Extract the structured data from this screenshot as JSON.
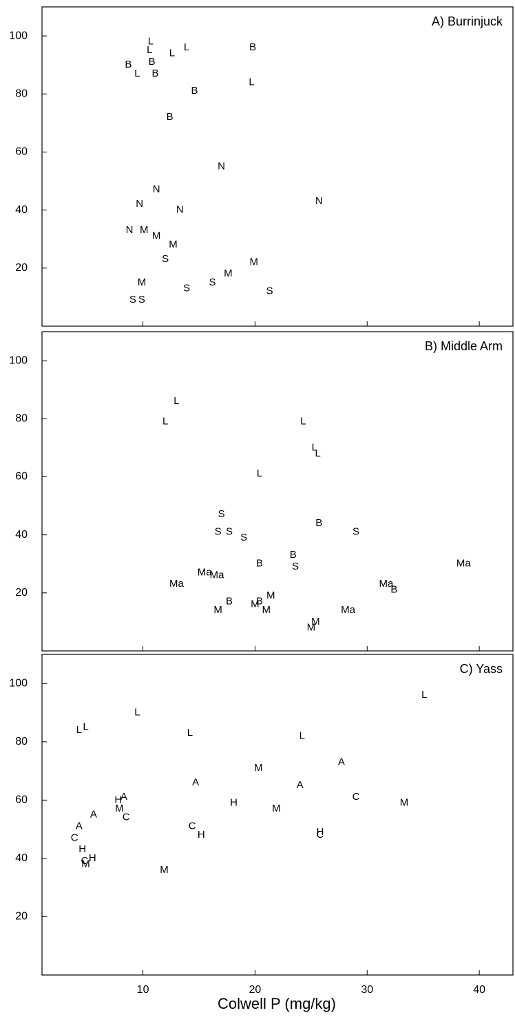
{
  "chart_data": {
    "type": "scatter",
    "xlabel": "Colwell P (mg/kg)",
    "xlim": [
      1,
      43
    ],
    "x_ticks": [
      "10",
      "20",
      "30",
      "40"
    ],
    "x_tick_values": [
      10,
      20,
      30,
      40
    ],
    "ylabel": "",
    "grid": false,
    "legend": "none",
    "colors": {
      "ink": "#000000",
      "background": "#ffffff"
    },
    "panels": [
      {
        "title": "A) Burrinjuck",
        "ylim": [
          0,
          110
        ],
        "y_ticks": [
          "20",
          "40",
          "60",
          "80",
          "100"
        ],
        "y_tick_values": [
          20,
          40,
          60,
          80,
          100
        ],
        "points": [
          {
            "label": "L",
            "x": 10.7,
            "y": 98
          },
          {
            "label": "L",
            "x": 10.6,
            "y": 95
          },
          {
            "label": "L",
            "x": 12.6,
            "y": 94
          },
          {
            "label": "L",
            "x": 13.9,
            "y": 96
          },
          {
            "label": "B",
            "x": 19.8,
            "y": 96
          },
          {
            "label": "B",
            "x": 8.7,
            "y": 90
          },
          {
            "label": "B",
            "x": 10.8,
            "y": 91
          },
          {
            "label": "L",
            "x": 9.5,
            "y": 87
          },
          {
            "label": "B",
            "x": 11.1,
            "y": 87
          },
          {
            "label": "L",
            "x": 19.7,
            "y": 84
          },
          {
            "label": "B",
            "x": 14.6,
            "y": 81
          },
          {
            "label": "B",
            "x": 12.4,
            "y": 72
          },
          {
            "label": "N",
            "x": 17.0,
            "y": 55
          },
          {
            "label": "N",
            "x": 11.2,
            "y": 47
          },
          {
            "label": "N",
            "x": 25.7,
            "y": 43
          },
          {
            "label": "N",
            "x": 9.7,
            "y": 42
          },
          {
            "label": "N",
            "x": 13.3,
            "y": 40
          },
          {
            "label": "N",
            "x": 8.8,
            "y": 33
          },
          {
            "label": "M",
            "x": 10.1,
            "y": 33
          },
          {
            "label": "M",
            "x": 11.2,
            "y": 31
          },
          {
            "label": "M",
            "x": 12.7,
            "y": 28
          },
          {
            "label": "S",
            "x": 12.0,
            "y": 23
          },
          {
            "label": "M",
            "x": 19.9,
            "y": 22
          },
          {
            "label": "M",
            "x": 17.6,
            "y": 18
          },
          {
            "label": "S",
            "x": 16.2,
            "y": 15
          },
          {
            "label": "M",
            "x": 9.9,
            "y": 15
          },
          {
            "label": "S",
            "x": 13.9,
            "y": 13
          },
          {
            "label": "S",
            "x": 21.3,
            "y": 12
          },
          {
            "label": "S",
            "x": 9.1,
            "y": 9
          },
          {
            "label": "S",
            "x": 9.9,
            "y": 9
          }
        ]
      },
      {
        "title": "B) Middle Arm",
        "ylim": [
          0,
          110
        ],
        "y_ticks": [
          "20",
          "40",
          "60",
          "80",
          "100"
        ],
        "y_tick_values": [
          20,
          40,
          60,
          80,
          100
        ],
        "points": [
          {
            "label": "L",
            "x": 13.0,
            "y": 86
          },
          {
            "label": "L",
            "x": 12.0,
            "y": 79
          },
          {
            "label": "L",
            "x": 24.3,
            "y": 79
          },
          {
            "label": "L",
            "x": 25.3,
            "y": 70
          },
          {
            "label": "L",
            "x": 25.6,
            "y": 68
          },
          {
            "label": "L",
            "x": 20.4,
            "y": 61
          },
          {
            "label": "S",
            "x": 17.0,
            "y": 47
          },
          {
            "label": "B",
            "x": 25.7,
            "y": 44
          },
          {
            "label": "S",
            "x": 16.7,
            "y": 41
          },
          {
            "label": "S",
            "x": 17.7,
            "y": 41
          },
          {
            "label": "S",
            "x": 29.0,
            "y": 41
          },
          {
            "label": "S",
            "x": 19.0,
            "y": 39
          },
          {
            "label": "B",
            "x": 23.4,
            "y": 33
          },
          {
            "label": "B",
            "x": 20.4,
            "y": 30
          },
          {
            "label": "Ma",
            "x": 38.6,
            "y": 30
          },
          {
            "label": "S",
            "x": 23.6,
            "y": 29
          },
          {
            "label": "Ma",
            "x": 15.5,
            "y": 27
          },
          {
            "label": "Ma",
            "x": 16.6,
            "y": 26
          },
          {
            "label": "Ma",
            "x": 13.0,
            "y": 23
          },
          {
            "label": "Ma",
            "x": 31.7,
            "y": 23
          },
          {
            "label": "B",
            "x": 32.4,
            "y": 21
          },
          {
            "label": "M",
            "x": 21.4,
            "y": 19
          },
          {
            "label": "B",
            "x": 17.7,
            "y": 17
          },
          {
            "label": "B",
            "x": 20.4,
            "y": 17
          },
          {
            "label": "M",
            "x": 20.0,
            "y": 16
          },
          {
            "label": "M",
            "x": 16.7,
            "y": 14
          },
          {
            "label": "M",
            "x": 21.0,
            "y": 14
          },
          {
            "label": "Ma",
            "x": 28.3,
            "y": 14
          },
          {
            "label": "M",
            "x": 25.4,
            "y": 10
          },
          {
            "label": "M",
            "x": 25.0,
            "y": 8
          }
        ]
      },
      {
        "title": "C) Yass",
        "ylim": [
          0,
          110
        ],
        "y_ticks": [
          "20",
          "40",
          "60",
          "80",
          "100"
        ],
        "y_tick_values": [
          20,
          40,
          60,
          80,
          100
        ],
        "points": [
          {
            "label": "L",
            "x": 35.1,
            "y": 96
          },
          {
            "label": "L",
            "x": 9.5,
            "y": 90
          },
          {
            "label": "L",
            "x": 4.3,
            "y": 84
          },
          {
            "label": "L",
            "x": 4.9,
            "y": 85
          },
          {
            "label": "L",
            "x": 14.2,
            "y": 83
          },
          {
            "label": "L",
            "x": 24.2,
            "y": 82
          },
          {
            "label": "A",
            "x": 27.7,
            "y": 73
          },
          {
            "label": "M",
            "x": 20.3,
            "y": 71
          },
          {
            "label": "A",
            "x": 14.7,
            "y": 66
          },
          {
            "label": "A",
            "x": 24.0,
            "y": 65
          },
          {
            "label": "C",
            "x": 29.0,
            "y": 61
          },
          {
            "label": "H",
            "x": 7.8,
            "y": 60
          },
          {
            "label": "A",
            "x": 8.3,
            "y": 61
          },
          {
            "label": "H",
            "x": 18.1,
            "y": 59
          },
          {
            "label": "M",
            "x": 33.3,
            "y": 59
          },
          {
            "label": "M",
            "x": 7.9,
            "y": 57
          },
          {
            "label": "M",
            "x": 21.9,
            "y": 57
          },
          {
            "label": "A",
            "x": 5.6,
            "y": 55
          },
          {
            "label": "C",
            "x": 8.5,
            "y": 54
          },
          {
            "label": "C",
            "x": 14.4,
            "y": 51
          },
          {
            "label": "A",
            "x": 4.3,
            "y": 51
          },
          {
            "label": "H",
            "x": 15.2,
            "y": 48
          },
          {
            "label": "H",
            "x": 25.8,
            "y": 49
          },
          {
            "label": "C",
            "x": 25.8,
            "y": 48
          },
          {
            "label": "C",
            "x": 3.9,
            "y": 47
          },
          {
            "label": "H",
            "x": 4.6,
            "y": 43
          },
          {
            "label": "H",
            "x": 5.5,
            "y": 40
          },
          {
            "label": "C",
            "x": 4.8,
            "y": 39
          },
          {
            "label": "M",
            "x": 4.9,
            "y": 38
          },
          {
            "label": "M",
            "x": 11.9,
            "y": 36
          }
        ]
      }
    ]
  }
}
